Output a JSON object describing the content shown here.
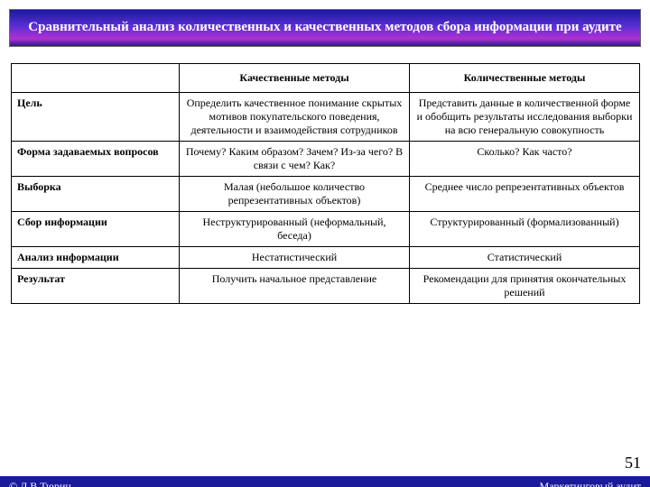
{
  "title": "Сравнительный анализ количественных и качественных методов сбора информации при аудите",
  "columns": {
    "blank": "",
    "qual": "Качественные методы",
    "quant": "Количественные методы"
  },
  "rows": [
    {
      "label": "Цель",
      "qual": "Определить качественное понимание скрытых мотивов покупательского поведения, деятельности и взаимодействия сотрудников",
      "quant": "Представить данные в количественной форме и обобщить результаты исследования выборки на всю генеральную совокупность"
    },
    {
      "label": "Форма задаваемых вопросов",
      "qual": "Почему? Каким образом? Зачем? Из-за чего? В связи с чем? Как?",
      "quant": "Сколько? Как часто?"
    },
    {
      "label": "Выборка",
      "qual": "Малая (небольшое количество репрезентативных объектов)",
      "quant": "Среднее число репрезентативных объектов"
    },
    {
      "label": "Сбор информации",
      "qual": "Неструктурированный (неформальный, беседа)",
      "quant": "Структурированный (формализованный)"
    },
    {
      "label": "Анализ информации",
      "qual": "Нестатистический",
      "quant": "Статистический"
    },
    {
      "label": "Результат",
      "qual": "Получить начальное представление",
      "quant": "Рекомендации для принятия окончательных решений"
    }
  ],
  "page_number": "51",
  "footer": {
    "left": "© Д.В.Тюрин",
    "right": "Маркетинговый аудит"
  },
  "style": {
    "header_gradient": [
      "#1a1a9a",
      "#5a2ed6",
      "#b030d0",
      "#2a1a80"
    ],
    "header_text_color": "#ffffff",
    "footer_bg": "#1a1a9a",
    "footer_text_color": "#ffffff",
    "border_color": "#000000",
    "body_font": "Times New Roman",
    "cell_fontsize_pt": 12,
    "title_fontsize_pt": 15
  }
}
